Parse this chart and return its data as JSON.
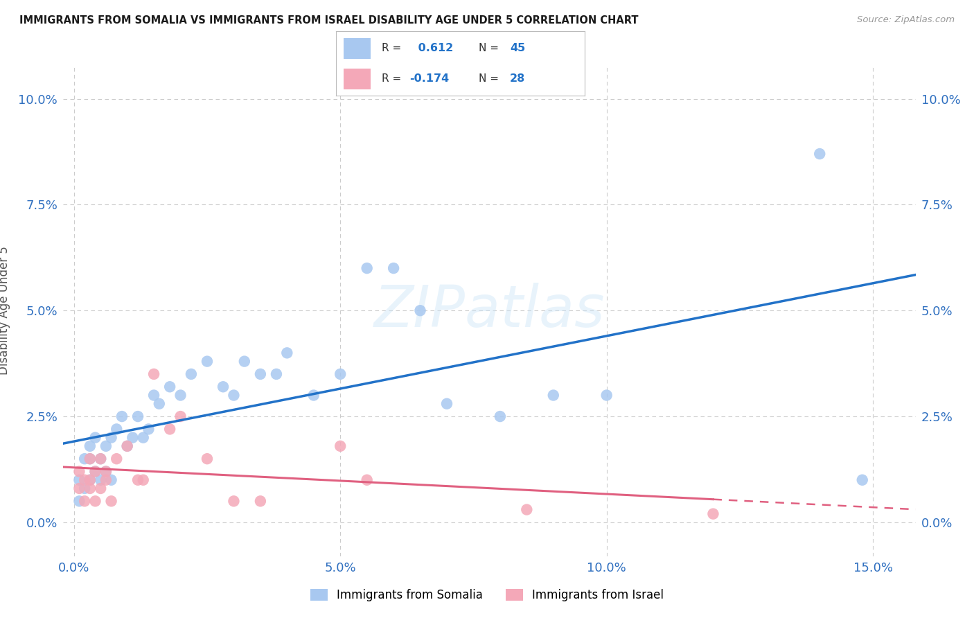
{
  "title": "IMMIGRANTS FROM SOMALIA VS IMMIGRANTS FROM ISRAEL DISABILITY AGE UNDER 5 CORRELATION CHART",
  "source": "Source: ZipAtlas.com",
  "ylabel": "Disability Age Under 5",
  "xlabel_vals": [
    0.0,
    0.05,
    0.1,
    0.15
  ],
  "xlabel_labels": [
    "0.0%",
    "5.0%",
    "10.0%",
    "15.0%"
  ],
  "ylabel_vals": [
    0.0,
    0.025,
    0.05,
    0.075,
    0.1
  ],
  "ylabel_labels": [
    "0.0%",
    "2.5%",
    "5.0%",
    "7.5%",
    "10.0%"
  ],
  "xlim": [
    -0.002,
    0.158
  ],
  "ylim": [
    -0.008,
    0.108
  ],
  "somalia_R": 0.612,
  "somalia_N": 45,
  "israel_R": -0.174,
  "israel_N": 28,
  "somalia_color": "#a8c8f0",
  "israel_color": "#f4a8b8",
  "somalia_line_color": "#2272c8",
  "israel_line_color": "#e06080",
  "watermark": "ZIPatlas",
  "somalia_x": [
    0.001,
    0.001,
    0.002,
    0.002,
    0.003,
    0.003,
    0.003,
    0.004,
    0.004,
    0.005,
    0.005,
    0.006,
    0.006,
    0.007,
    0.007,
    0.008,
    0.009,
    0.01,
    0.011,
    0.012,
    0.013,
    0.014,
    0.015,
    0.016,
    0.018,
    0.02,
    0.022,
    0.025,
    0.028,
    0.03,
    0.032,
    0.035,
    0.038,
    0.04,
    0.045,
    0.05,
    0.055,
    0.06,
    0.065,
    0.07,
    0.08,
    0.09,
    0.1,
    0.14,
    0.148
  ],
  "somalia_y": [
    0.005,
    0.01,
    0.008,
    0.015,
    0.01,
    0.015,
    0.018,
    0.012,
    0.02,
    0.01,
    0.015,
    0.012,
    0.018,
    0.01,
    0.02,
    0.022,
    0.025,
    0.018,
    0.02,
    0.025,
    0.02,
    0.022,
    0.03,
    0.028,
    0.032,
    0.03,
    0.035,
    0.038,
    0.032,
    0.03,
    0.038,
    0.035,
    0.035,
    0.04,
    0.03,
    0.035,
    0.06,
    0.06,
    0.05,
    0.028,
    0.025,
    0.03,
    0.03,
    0.087,
    0.01
  ],
  "israel_x": [
    0.001,
    0.001,
    0.002,
    0.002,
    0.003,
    0.003,
    0.003,
    0.004,
    0.004,
    0.005,
    0.005,
    0.006,
    0.006,
    0.007,
    0.008,
    0.01,
    0.012,
    0.013,
    0.015,
    0.018,
    0.02,
    0.025,
    0.03,
    0.035,
    0.05,
    0.055,
    0.085,
    0.12
  ],
  "israel_y": [
    0.008,
    0.012,
    0.005,
    0.01,
    0.008,
    0.01,
    0.015,
    0.005,
    0.012,
    0.008,
    0.015,
    0.01,
    0.012,
    0.005,
    0.015,
    0.018,
    0.01,
    0.01,
    0.035,
    0.022,
    0.025,
    0.015,
    0.005,
    0.005,
    0.018,
    0.01,
    0.003,
    0.002
  ]
}
